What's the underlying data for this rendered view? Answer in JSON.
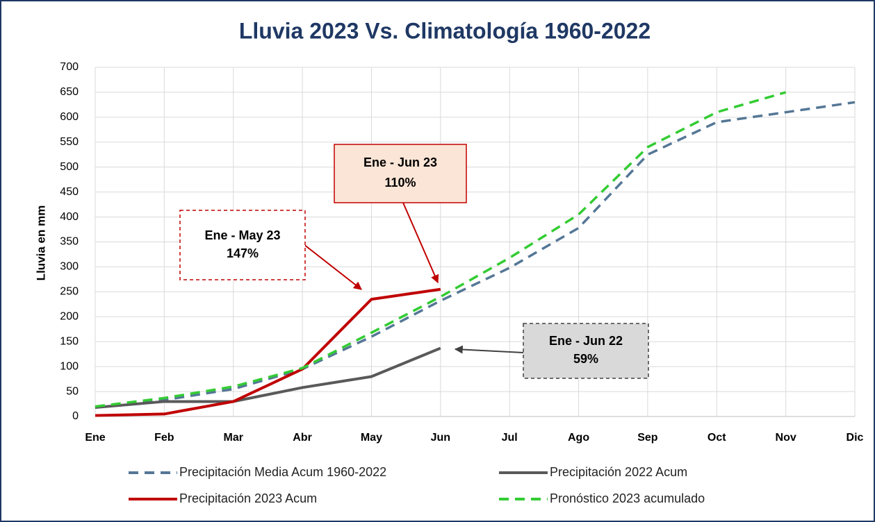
{
  "chart_data": {
    "type": "line",
    "title": "Lluvia 2023 Vs. Climatología 1960-2022",
    "y_label": "Lluvia en mm",
    "categories": [
      "Ene",
      "Feb",
      "Mar",
      "Abr",
      "May",
      "Jun",
      "Jul",
      "Ago",
      "Sep",
      "Oct",
      "Nov",
      "Dic"
    ],
    "series": [
      {
        "name": "Precipitación Media Acum 1960-2022",
        "color": "#557796",
        "dash": true,
        "values": [
          18,
          33,
          55,
          95,
          160,
          232,
          298,
          378,
          525,
          590,
          610,
          630
        ]
      },
      {
        "name": "Precipitación 2022 Acum",
        "color": "#595959",
        "dash": false,
        "values": [
          18,
          30,
          30,
          58,
          80,
          137,
          null,
          null,
          null,
          null,
          null,
          null
        ]
      },
      {
        "name": "Precipitación 2023 Acum",
        "color": "#c00000",
        "dash": false,
        "values": [
          2,
          5,
          30,
          95,
          235,
          255,
          null,
          null,
          null,
          null,
          null,
          null
        ]
      },
      {
        "name": "Pronóstico 2023 acumulado",
        "color": "#33cc33",
        "dash": true,
        "values": [
          20,
          37,
          60,
          97,
          168,
          240,
          318,
          405,
          540,
          610,
          650,
          null
        ]
      }
    ],
    "ylim": [
      0,
      700
    ],
    "yticks": [
      0,
      50,
      100,
      150,
      200,
      250,
      300,
      350,
      400,
      450,
      500,
      550,
      600,
      650,
      700
    ],
    "grid": true,
    "annotations": [
      {
        "lines": [
          "Ene - Jun 23",
          "110%"
        ]
      },
      {
        "lines": [
          "Ene - May 23",
          "147%"
        ]
      },
      {
        "lines": [
          "Ene - Jun 22",
          "59%"
        ]
      }
    ]
  }
}
